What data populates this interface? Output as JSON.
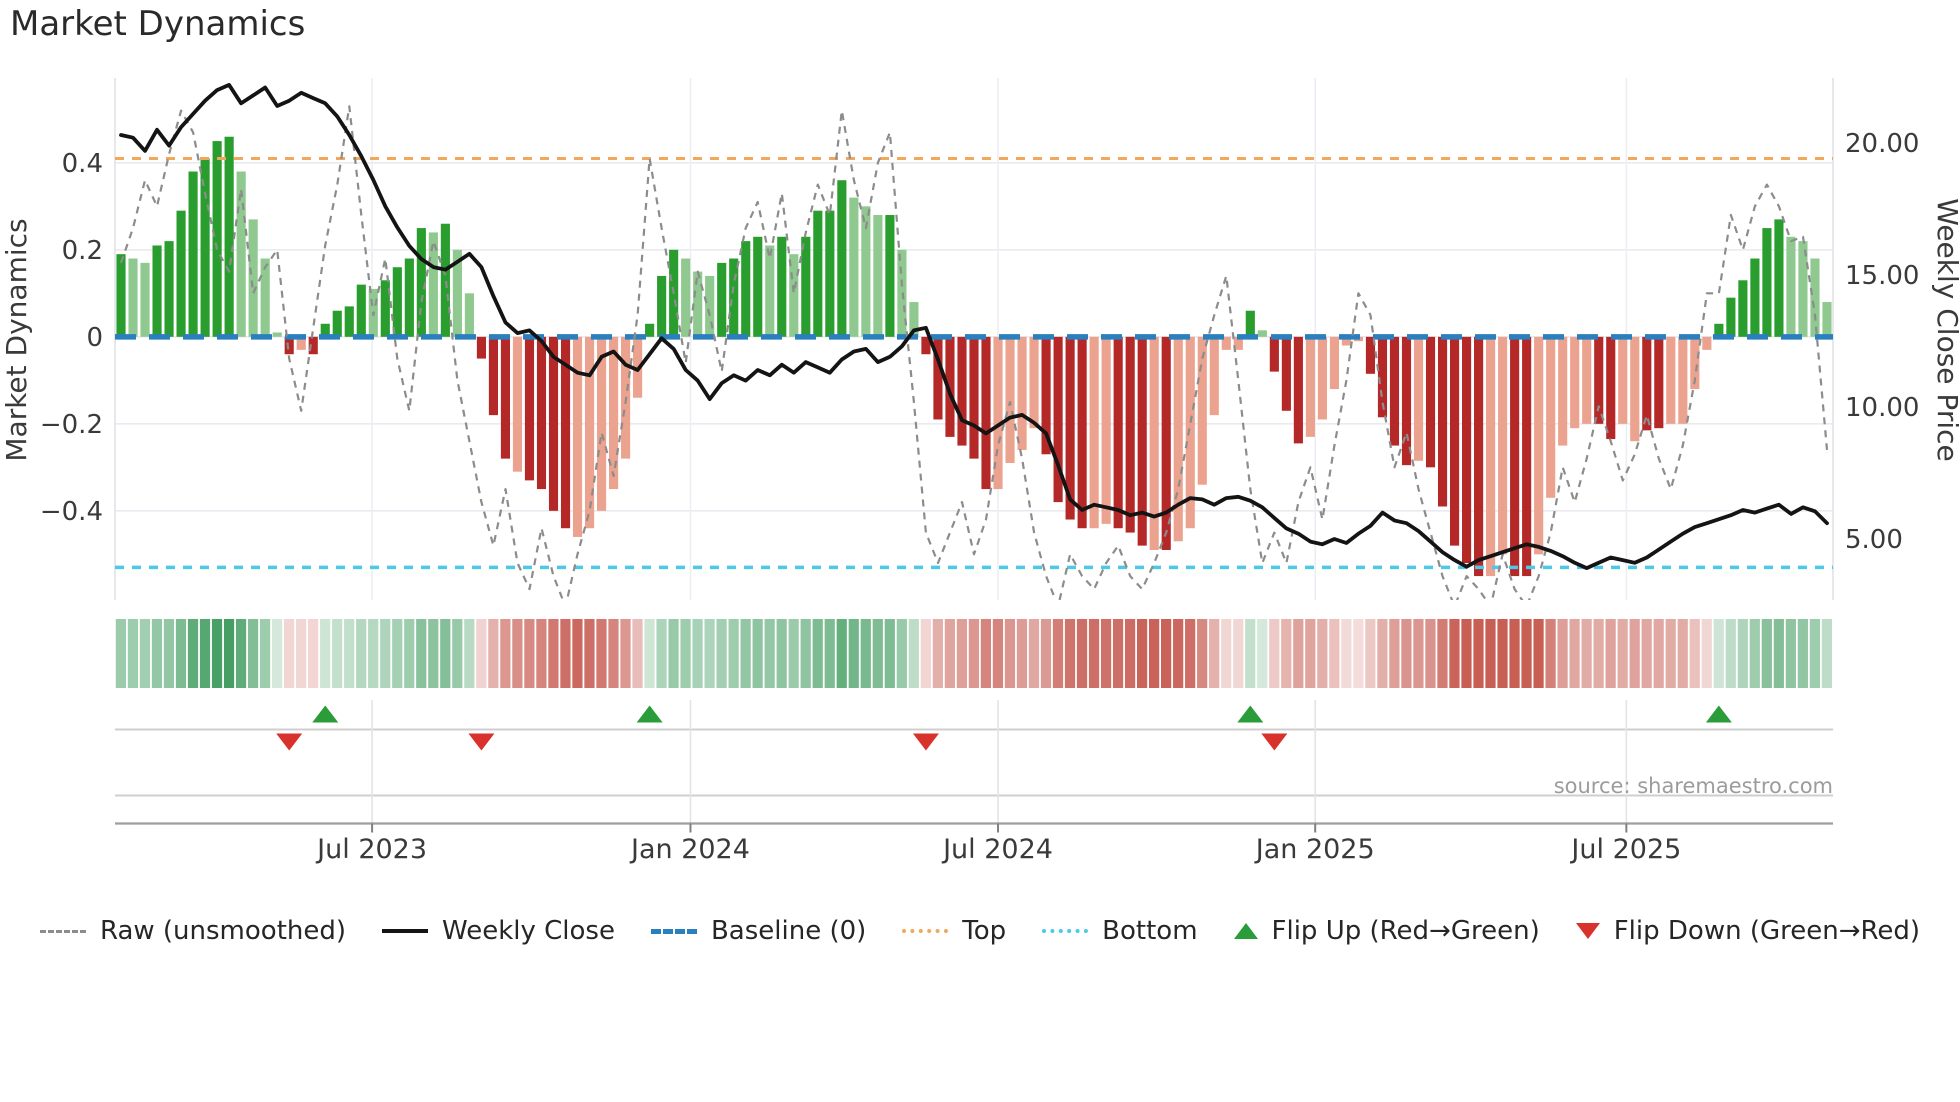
{
  "page": {
    "title": "Market Dynamics"
  },
  "chart_data": {
    "type": "combo",
    "title": "Market Dynamics",
    "source_note": "source: sharemaestro.com",
    "left_axis": {
      "label": "Market Dynamics",
      "ticks": [
        0.4,
        0.2,
        0,
        -0.2,
        -0.4
      ],
      "range": [
        -0.605,
        0.595
      ]
    },
    "right_axis": {
      "label": "Weekly Close Price",
      "ticks": [
        20,
        15,
        10,
        5
      ],
      "range": [
        2.69,
        22.46
      ]
    },
    "x_axis": {
      "tick_labels": [
        "Jul 2023",
        "Jan 2024",
        "Jul 2024",
        "Jan 2025",
        "Jul 2025"
      ],
      "tick_weeks": [
        20.9,
        47.4,
        73.0,
        99.4,
        125.3
      ],
      "n_weeks": 143
    },
    "thresholds": {
      "baseline": 0.0,
      "top": 0.41,
      "bottom": -0.53
    },
    "grid": true,
    "legend_position": "bottom-center",
    "series": {
      "oscillator_values": [
        0.19,
        0.18,
        0.17,
        0.21,
        0.22,
        0.29,
        0.38,
        0.41,
        0.45,
        0.46,
        0.38,
        0.27,
        0.18,
        0.01,
        -0.04,
        -0.03,
        -0.04,
        0.03,
        0.06,
        0.07,
        0.12,
        0.11,
        0.13,
        0.16,
        0.18,
        0.25,
        0.24,
        0.26,
        0.2,
        0.1,
        -0.05,
        -0.18,
        -0.28,
        -0.31,
        -0.33,
        -0.35,
        -0.4,
        -0.44,
        -0.46,
        -0.44,
        -0.4,
        -0.35,
        -0.28,
        -0.14,
        0.03,
        0.14,
        0.2,
        0.18,
        0.15,
        0.14,
        0.17,
        0.18,
        0.22,
        0.23,
        0.21,
        0.23,
        0.19,
        0.23,
        0.29,
        0.29,
        0.36,
        0.32,
        0.3,
        0.28,
        0.28,
        0.2,
        0.08,
        -0.04,
        -0.19,
        -0.23,
        -0.25,
        -0.28,
        -0.35,
        -0.35,
        -0.29,
        -0.26,
        -0.21,
        -0.27,
        -0.38,
        -0.42,
        -0.44,
        -0.44,
        -0.43,
        -0.44,
        -0.45,
        -0.48,
        -0.49,
        -0.49,
        -0.47,
        -0.44,
        -0.34,
        -0.18,
        -0.03,
        -0.03,
        0.06,
        0.015,
        -0.08,
        -0.17,
        -0.245,
        -0.23,
        -0.19,
        -0.12,
        -0.02,
        -0.01,
        -0.085,
        -0.185,
        -0.25,
        -0.295,
        -0.285,
        -0.3,
        -0.39,
        -0.48,
        -0.52,
        -0.55,
        -0.55,
        -0.5,
        -0.55,
        -0.55,
        -0.5,
        -0.37,
        -0.25,
        -0.21,
        -0.2,
        -0.2,
        -0.235,
        -0.2,
        -0.24,
        -0.215,
        -0.21,
        -0.2,
        -0.2,
        -0.12,
        -0.03,
        0.03,
        0.09,
        0.13,
        0.18,
        0.25,
        0.27,
        0.23,
        0.22,
        0.18,
        0.08
      ],
      "oscillator_shades": [
        "d",
        "l",
        "l",
        "d",
        "d",
        "d",
        "d",
        "d",
        "d",
        "d",
        "l",
        "l",
        "l",
        "l",
        "d",
        "l",
        "d",
        "d",
        "d",
        "d",
        "d",
        "l",
        "d",
        "d",
        "d",
        "d",
        "l",
        "d",
        "l",
        "l",
        "d",
        "d",
        "d",
        "l",
        "d",
        "d",
        "d",
        "d",
        "l",
        "l",
        "l",
        "l",
        "l",
        "l",
        "d",
        "d",
        "d",
        "l",
        "l",
        "l",
        "d",
        "d",
        "d",
        "d",
        "l",
        "d",
        "l",
        "d",
        "d",
        "d",
        "d",
        "l",
        "l",
        "l",
        "d",
        "l",
        "l",
        "d",
        "d",
        "d",
        "d",
        "d",
        "d",
        "l",
        "l",
        "l",
        "l",
        "d",
        "d",
        "d",
        "d",
        "l",
        "l",
        "d",
        "d",
        "d",
        "l",
        "d",
        "l",
        "l",
        "l",
        "l",
        "l",
        "l",
        "d",
        "l",
        "d",
        "d",
        "d",
        "l",
        "l",
        "l",
        "l",
        "l",
        "d",
        "d",
        "d",
        "d",
        "l",
        "d",
        "d",
        "d",
        "d",
        "d",
        "l",
        "l",
        "d",
        "d",
        "l",
        "l",
        "l",
        "l",
        "l",
        "d",
        "d",
        "l",
        "l",
        "d",
        "d",
        "l",
        "l",
        "l",
        "l",
        "d",
        "d",
        "d",
        "d",
        "d",
        "d",
        "l",
        "l",
        "l",
        "l"
      ],
      "raw_values": [
        0.17,
        0.25,
        0.36,
        0.3,
        0.42,
        0.52,
        0.47,
        0.33,
        0.2,
        0.15,
        0.34,
        0.1,
        0.16,
        0.2,
        -0.05,
        -0.17,
        0.02,
        0.21,
        0.35,
        0.53,
        0.28,
        0.05,
        0.18,
        -0.05,
        -0.17,
        0.08,
        0.22,
        0.14,
        -0.1,
        -0.24,
        -0.38,
        -0.48,
        -0.35,
        -0.52,
        -0.58,
        -0.44,
        -0.55,
        -0.62,
        -0.5,
        -0.4,
        -0.22,
        -0.32,
        -0.15,
        0.05,
        0.41,
        0.25,
        0.1,
        -0.06,
        0.15,
        0.05,
        -0.08,
        0.12,
        0.25,
        0.31,
        0.18,
        0.33,
        0.1,
        0.24,
        0.35,
        0.28,
        0.52,
        0.36,
        0.25,
        0.4,
        0.47,
        0.12,
        -0.15,
        -0.45,
        -0.52,
        -0.45,
        -0.38,
        -0.5,
        -0.42,
        -0.25,
        -0.15,
        -0.28,
        -0.45,
        -0.55,
        -0.62,
        -0.5,
        -0.55,
        -0.58,
        -0.52,
        -0.48,
        -0.55,
        -0.58,
        -0.52,
        -0.45,
        -0.35,
        -0.2,
        -0.05,
        0.05,
        0.14,
        -0.1,
        -0.35,
        -0.52,
        -0.45,
        -0.52,
        -0.38,
        -0.3,
        -0.42,
        -0.25,
        -0.1,
        0.1,
        0.05,
        -0.15,
        -0.3,
        -0.22,
        -0.35,
        -0.45,
        -0.55,
        -0.62,
        -0.55,
        -0.58,
        -0.62,
        -0.5,
        -0.58,
        -0.62,
        -0.55,
        -0.45,
        -0.3,
        -0.38,
        -0.28,
        -0.16,
        -0.24,
        -0.33,
        -0.27,
        -0.18,
        -0.28,
        -0.35,
        -0.25,
        -0.1,
        0.1,
        0.1,
        0.28,
        0.2,
        0.3,
        0.35,
        0.3,
        0.22,
        0.23,
        0.05,
        -0.26
      ],
      "weekly_close_values": [
        20.3,
        20.2,
        19.7,
        20.5,
        19.9,
        20.6,
        21.1,
        21.6,
        22.0,
        22.2,
        21.5,
        21.8,
        22.1,
        21.4,
        21.6,
        21.9,
        21.7,
        21.5,
        21.0,
        20.3,
        19.5,
        18.6,
        17.6,
        16.8,
        16.1,
        15.6,
        15.3,
        15.2,
        15.5,
        15.8,
        15.3,
        14.2,
        13.2,
        12.8,
        12.9,
        12.5,
        11.9,
        11.6,
        11.3,
        11.2,
        11.9,
        12.1,
        11.6,
        11.4,
        12.0,
        12.6,
        12.2,
        11.4,
        11.0,
        10.3,
        10.9,
        11.2,
        11.0,
        11.4,
        11.2,
        11.6,
        11.3,
        11.7,
        11.5,
        11.3,
        11.8,
        12.1,
        12.2,
        11.7,
        11.9,
        12.3,
        12.9,
        13.0,
        11.8,
        10.5,
        9.5,
        9.3,
        9.0,
        9.3,
        9.6,
        9.7,
        9.4,
        9.0,
        7.8,
        6.5,
        6.1,
        6.3,
        6.2,
        6.1,
        5.9,
        6.0,
        5.85,
        6.0,
        6.3,
        6.55,
        6.5,
        6.3,
        6.55,
        6.6,
        6.45,
        6.2,
        5.8,
        5.4,
        5.2,
        4.9,
        4.8,
        5.0,
        4.85,
        5.2,
        5.5,
        6.0,
        5.7,
        5.6,
        5.3,
        4.9,
        4.5,
        4.2,
        3.95,
        4.2,
        4.35,
        4.5,
        4.65,
        4.8,
        4.7,
        4.55,
        4.35,
        4.1,
        3.9,
        4.1,
        4.3,
        4.2,
        4.1,
        4.3,
        4.6,
        4.9,
        5.2,
        5.45,
        5.6,
        5.75,
        5.9,
        6.1,
        6.0,
        6.15,
        6.3,
        5.95,
        6.2,
        6.05,
        5.6
      ]
    },
    "flips": {
      "up_weeks": [
        17,
        44,
        94,
        133
      ],
      "down_weeks": [
        14,
        30,
        67,
        96
      ]
    },
    "legend": [
      {
        "label": "Raw (unsmoothed)",
        "type": "dashed-line",
        "color": "#8c8c8c"
      },
      {
        "label": "Weekly Close",
        "type": "solid-line",
        "color": "#141414"
      },
      {
        "label": "Baseline (0)",
        "type": "dashed-line",
        "color": "#2a7fbf"
      },
      {
        "label": "Top",
        "type": "dotted-line",
        "color": "#f2a85c"
      },
      {
        "label": "Bottom",
        "type": "dotted-line",
        "color": "#4cc8e8"
      },
      {
        "label": "Flip Up (Red→Green)",
        "type": "triangle-up",
        "color": "#2a9d3a"
      },
      {
        "label": "Flip Down (Green→Red)",
        "type": "triangle-down",
        "color": "#d9312b"
      }
    ],
    "colors": {
      "bar_green_dark": "#2a9d2f",
      "bar_green_light": "#8fc98f",
      "bar_red_dark": "#b42828",
      "bar_red_light": "#eba28e",
      "baseline": "#2a7fbf",
      "top_line": "#f2a85c",
      "bottom_line": "#4cc8e8",
      "raw_line": "#8c8c8c",
      "close_line": "#141414",
      "flip_up": "#2a9d3a",
      "flip_down": "#d9312b",
      "heat_green_rgb": "58,152,90",
      "heat_red_rgb": "200,95,85"
    }
  }
}
